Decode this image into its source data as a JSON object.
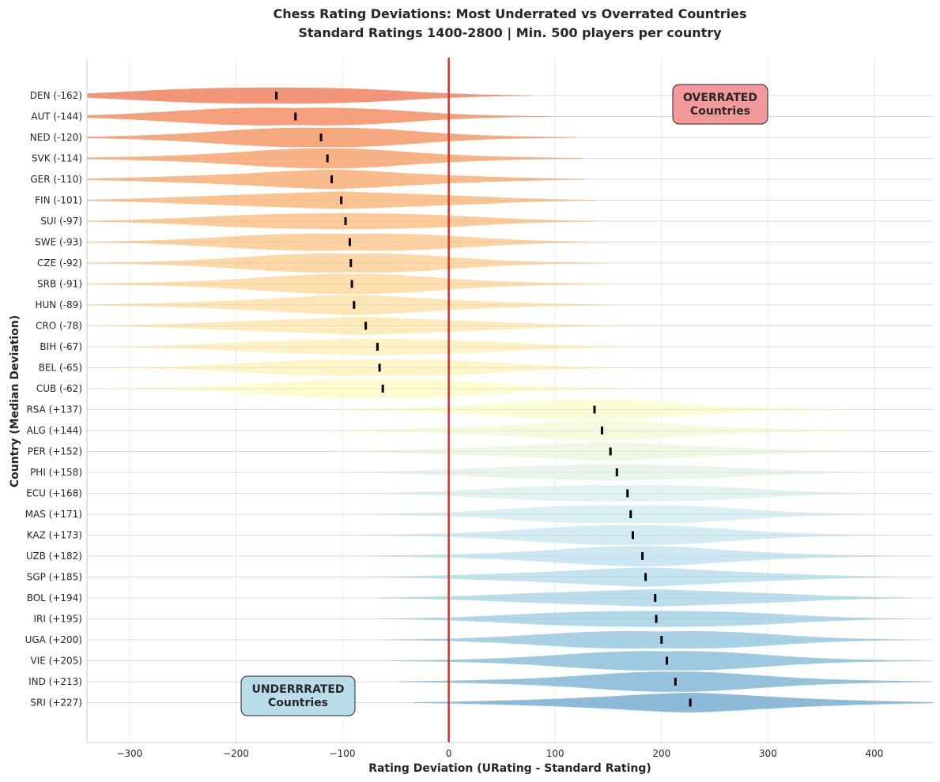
{
  "chart_data": {
    "type": "violin",
    "title": "Chess Rating Deviations: Most Underrated vs Overrated Countries",
    "subtitle": "Standard Ratings 1400-2800 | Min. 500 players per country",
    "xlabel": "Rating Deviation (URating - Standard Rating)",
    "ylabel": "Country (Median Deviation)",
    "xlim": [
      -340,
      455
    ],
    "xticks": [
      -300,
      -200,
      -100,
      0,
      100,
      200,
      300,
      400
    ],
    "xtick_labels": [
      "−300",
      "−200",
      "−100",
      "0",
      "100",
      "200",
      "300",
      "400"
    ],
    "reference_line": {
      "x": 0,
      "color": "#d62f27"
    },
    "grid": true,
    "categories": [
      {
        "code": "DEN",
        "label": "DEN (-162)",
        "median": -162,
        "color": "#f4815f"
      },
      {
        "code": "AUT",
        "label": "AUT (-144)",
        "median": -144,
        "color": "#f68e64"
      },
      {
        "code": "NED",
        "label": "NED (-120)",
        "median": -120,
        "color": "#f79969"
      },
      {
        "code": "SVK",
        "label": "SVK (-114)",
        "median": -114,
        "color": "#f9a56f"
      },
      {
        "code": "GER",
        "label": "GER (-110)",
        "median": -110,
        "color": "#faae76"
      },
      {
        "code": "FIN",
        "label": "FIN (-101)",
        "median": -101,
        "color": "#fbb87e"
      },
      {
        "code": "SUI",
        "label": "SUI (-97)",
        "median": -97,
        "color": "#fcc186"
      },
      {
        "code": "SWE",
        "label": "SWE (-93)",
        "median": -93,
        "color": "#fdc98e"
      },
      {
        "code": "CZE",
        "label": "CZE (-92)",
        "median": -92,
        "color": "#fdd197"
      },
      {
        "code": "SRB",
        "label": "SRB (-91)",
        "median": -91,
        "color": "#fed89f"
      },
      {
        "code": "HUN",
        "label": "HUN (-89)",
        "median": -89,
        "color": "#fee0a8"
      },
      {
        "code": "CRO",
        "label": "CRO (-78)",
        "median": -78,
        "color": "#fee8b0"
      },
      {
        "code": "BIH",
        "label": "BIH (-67)",
        "median": -67,
        "color": "#feefb8"
      },
      {
        "code": "BEL",
        "label": "BEL (-65)",
        "median": -65,
        "color": "#fef4bf"
      },
      {
        "code": "CUB",
        "label": "CUB (-62)",
        "median": -62,
        "color": "#fefac6"
      },
      {
        "code": "RSA",
        "label": "RSA (+137)",
        "median": 137,
        "color": "#fbfdcd"
      },
      {
        "code": "ALG",
        "label": "ALG (+144)",
        "median": 144,
        "color": "#f3fad6"
      },
      {
        "code": "PER",
        "label": "PER (+152)",
        "median": 152,
        "color": "#ebf7de"
      },
      {
        "code": "PHI",
        "label": "PHI (+158)",
        "median": 158,
        "color": "#e3f3e6"
      },
      {
        "code": "ECU",
        "label": "ECU (+168)",
        "median": 168,
        "color": "#dbf0ee"
      },
      {
        "code": "MAS",
        "label": "MAS (+171)",
        "median": 171,
        "color": "#d4edf1"
      },
      {
        "code": "KAZ",
        "label": "KAZ (+173)",
        "median": 173,
        "color": "#cbe8f0"
      },
      {
        "code": "UZB",
        "label": "UZB (+182)",
        "median": 182,
        "color": "#c2e3ee"
      },
      {
        "code": "SGP",
        "label": "SGP (+185)",
        "median": 185,
        "color": "#b8deec"
      },
      {
        "code": "BOL",
        "label": "BOL (+194)",
        "median": 194,
        "color": "#aed8e9"
      },
      {
        "code": "IRI",
        "label": "IRI (+195)",
        "median": 195,
        "color": "#a3d1e5"
      },
      {
        "code": "UGA",
        "label": "UGA (+200)",
        "median": 200,
        "color": "#98c9e1"
      },
      {
        "code": "VIE",
        "label": "VIE (+205)",
        "median": 205,
        "color": "#8dc1dc"
      },
      {
        "code": "IND",
        "label": "IND (+213)",
        "median": 213,
        "color": "#82b8d7"
      },
      {
        "code": "SRI",
        "label": "SRI (+227)",
        "median": 227,
        "color": "#77afd2"
      }
    ],
    "annotations": [
      {
        "id": "overrated",
        "line1": "OVERRATED",
        "line2": "Countries",
        "position": "top-right",
        "fill": "#f28e8e"
      },
      {
        "id": "underrated",
        "line1": "UNDERRRATED",
        "line2": "Countries",
        "position": "bottom-left",
        "fill": "#add8e6"
      }
    ]
  }
}
